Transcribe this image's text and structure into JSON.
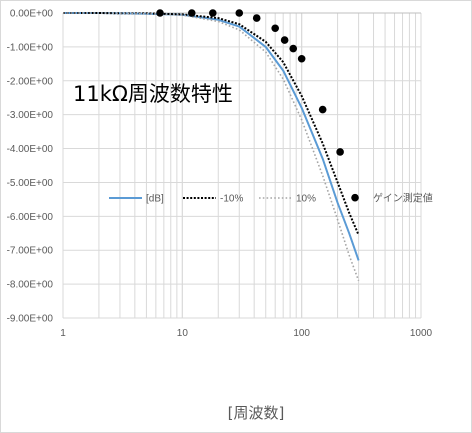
{
  "chart_data": {
    "type": "line",
    "title": "11kΩ周波数特性",
    "xlabel": "[周波数]",
    "ylabel": "",
    "x_scale": "log",
    "xlim": [
      1,
      1000
    ],
    "ylim": [
      -9.0,
      0.0
    ],
    "grid": true,
    "legend_position": "center",
    "x_ticks": [
      "1",
      "10",
      "100",
      "1000"
    ],
    "y_ticks": [
      "0.00E+00",
      "-1.00E+00",
      "-2.00E+00",
      "-3.00E+00",
      "-4.00E+00",
      "-5.00E+00",
      "-6.00E+00",
      "-7.00E+00",
      "-8.00E+00",
      "-9.00E+00"
    ],
    "y_tick_values": [
      0,
      -1,
      -2,
      -3,
      -4,
      -5,
      -6,
      -7,
      -8,
      -9
    ],
    "series": [
      {
        "name": "[dB]",
        "style": "solid",
        "color": "#5B9BD5",
        "x": [
          1,
          2,
          3,
          5,
          10,
          20,
          30,
          50,
          70,
          100,
          150,
          200,
          250,
          300
        ],
        "y": [
          0.0,
          0.0,
          -0.01,
          -0.02,
          -0.05,
          -0.2,
          -0.4,
          -1.0,
          -1.7,
          -2.8,
          -4.3,
          -5.6,
          -6.5,
          -7.3
        ]
      },
      {
        "name": "-10%",
        "style": "dotted",
        "color": "#000000",
        "x": [
          1,
          2,
          3,
          5,
          10,
          20,
          30,
          50,
          70,
          100,
          150,
          200,
          250,
          300
        ],
        "y": [
          0.0,
          0.0,
          -0.01,
          -0.01,
          -0.04,
          -0.15,
          -0.33,
          -0.85,
          -1.45,
          -2.45,
          -3.85,
          -5.0,
          -5.9,
          -6.55
        ]
      },
      {
        "name": "10%",
        "style": "dotted",
        "color": "#A5A5A5",
        "x": [
          1,
          2,
          3,
          5,
          10,
          20,
          30,
          50,
          70,
          100,
          150,
          200,
          250,
          300
        ],
        "y": [
          0.0,
          0.0,
          -0.01,
          -0.02,
          -0.06,
          -0.25,
          -0.5,
          -1.15,
          -1.95,
          -3.15,
          -4.8,
          -6.1,
          -7.15,
          -7.9
        ]
      },
      {
        "name": "ゲイン測定値",
        "style": "markers",
        "color": "#000000",
        "x": [
          6.5,
          12,
          18,
          30,
          42,
          60,
          72,
          85,
          100,
          150,
          210,
          280
        ],
        "y": [
          0.0,
          0.0,
          0.0,
          0.0,
          -0.15,
          -0.45,
          -0.8,
          -1.05,
          -1.35,
          -2.85,
          -4.1,
          -5.45
        ]
      }
    ]
  }
}
